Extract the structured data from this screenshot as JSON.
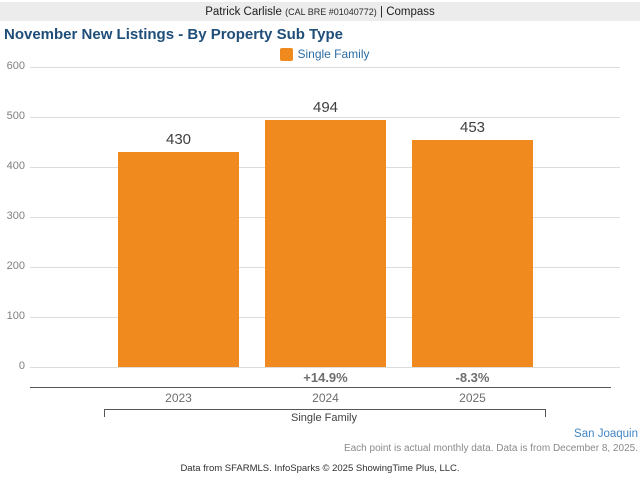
{
  "header": {
    "agent_name": "Patrick Carlisle",
    "license": "(CAL BRE #01040772)",
    "separator": "|",
    "brand": "Compass"
  },
  "title": "November New Listings - By Property Sub Type",
  "legend": {
    "label": "Single Family",
    "swatch_color": "#f0891e"
  },
  "chart_data": {
    "type": "bar",
    "title": "November New Listings - By Property Sub Type",
    "categories": [
      "2023",
      "2024",
      "2025"
    ],
    "series": [
      {
        "name": "Single Family",
        "values": [
          430,
          494,
          453
        ]
      }
    ],
    "value_labels": [
      "430",
      "494",
      "453"
    ],
    "pct_change_labels": [
      "",
      "+14.9%",
      "-8.3%"
    ],
    "group_label": "Single Family",
    "ylim": [
      0,
      600
    ],
    "yticks": [
      0,
      100,
      200,
      300,
      400,
      500,
      600
    ],
    "grid": true,
    "legend_position": "top-center",
    "bar_color": "#f0891e",
    "gridline_color": "#dcdcdc"
  },
  "footnotes": {
    "region": "San Joaquin",
    "data_note": "Each point is actual monthly data. Data is from December 8, 2025.",
    "attribution": "Data from SFARMLS. InfoSparks © 2025 ShowingTime Plus, LLC."
  }
}
